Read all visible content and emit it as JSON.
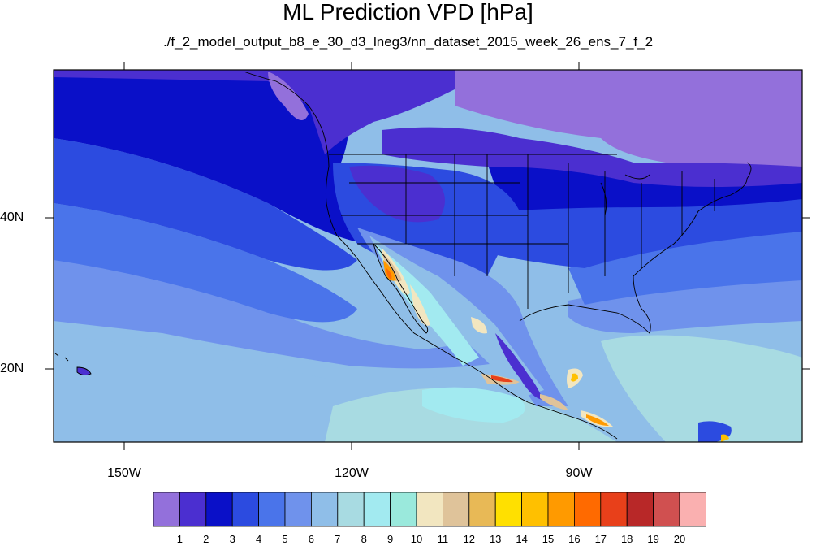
{
  "title": "ML Prediction VPD [hPa]",
  "subtitle": "./f_2_model_output_b8_e_30_d3_lneg3/nn_dataset_2015_week_26_ens_7_f_2",
  "axes": {
    "lat_labels": [
      "40N",
      "20N"
    ],
    "lon_labels": [
      "150W",
      "120W",
      "90W"
    ]
  },
  "colorbar": {
    "labels": [
      "1",
      "2",
      "3",
      "4",
      "5",
      "6",
      "7",
      "8",
      "9",
      "10",
      "11",
      "12",
      "13",
      "14",
      "15",
      "16",
      "17",
      "18",
      "19",
      "20"
    ],
    "colors": [
      "#9370DB",
      "#4B2FD0",
      "#0A10C8",
      "#2C4BE0",
      "#4A74EA",
      "#6F92EC",
      "#8FBEE8",
      "#A8DBE2",
      "#A2EAF0",
      "#9AE9DC",
      "#F2E6C0",
      "#DFC39A",
      "#E8B956",
      "#FFE000",
      "#FFC000",
      "#FF9A00",
      "#FF6A00",
      "#E8401A",
      "#B82828",
      "#D05050",
      "#FAB0B0"
    ]
  },
  "map_colors": {
    "level_1": "#9370DB",
    "level_2": "#4B2FD0",
    "level_3": "#0A10C8",
    "level_4": "#2C4BE0",
    "level_5": "#4A74EA",
    "level_6": "#6F92EC",
    "level_7": "#8FBEE8",
    "level_8": "#A8DBE2",
    "level_9": "#A2EAF0",
    "level_11": "#F2E6C0",
    "level_12": "#DFC39A",
    "level_15": "#FFC000",
    "level_16": "#FF9A00",
    "level_17": "#FF6A00",
    "level_18": "#E8401A"
  }
}
